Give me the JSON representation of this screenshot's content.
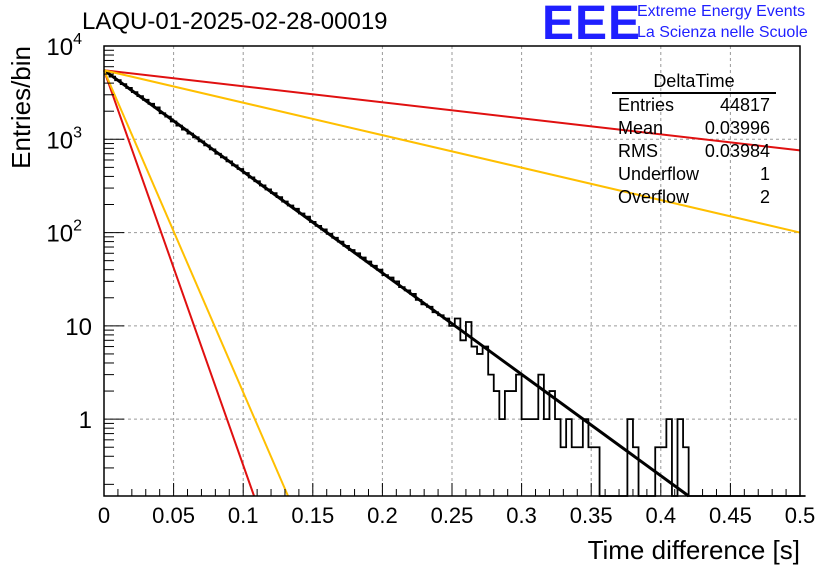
{
  "chart_title": "LAQU-01-2025-02-28-00019",
  "logo": {
    "mark": "EEE",
    "line1": "Extreme Energy Events",
    "line2": "La Scienza nelle Scuole",
    "color": "#1f1fff"
  },
  "stats_box": {
    "name": "DeltaTime",
    "rows": [
      {
        "key": "Entries",
        "value": "44817"
      },
      {
        "key": "Mean",
        "value": "0.03996"
      },
      {
        "key": "RMS",
        "value": "0.03984"
      },
      {
        "key": "Underflow",
        "value": "1"
      },
      {
        "key": "Overflow",
        "value": "2"
      }
    ]
  },
  "chart_data": {
    "type": "line",
    "xlabel": "Time difference [s]",
    "ylabel": "Entries/bin",
    "xlim": [
      0,
      0.5
    ],
    "ylim": [
      0.15,
      10000
    ],
    "yscale": "log",
    "grid": true,
    "x_ticks": [
      "0",
      "0.05",
      "0.1",
      "0.15",
      "0.2",
      "0.25",
      "0.3",
      "0.35",
      "0.4",
      "0.45",
      "0.5"
    ],
    "y_ticks": [
      {
        "value": 1,
        "base": "1",
        "exp": ""
      },
      {
        "value": 10,
        "base": "10",
        "exp": ""
      },
      {
        "value": 100,
        "base": "10",
        "exp": "2"
      },
      {
        "value": 1000,
        "base": "10",
        "exp": "3"
      },
      {
        "value": 10000,
        "base": "10",
        "exp": "4"
      }
    ],
    "histogram": {
      "name": "DeltaTime",
      "color": "#000000",
      "bin_width": 0.004,
      "values": [
        5200,
        4700,
        4300,
        3900,
        3550,
        3200,
        2900,
        2650,
        2400,
        2200,
        1900,
        1750,
        1550,
        1400,
        1270,
        1150,
        1050,
        950,
        860,
        780,
        700,
        640,
        580,
        525,
        480,
        435,
        390,
        355,
        320,
        290,
        265,
        240,
        215,
        195,
        180,
        160,
        148,
        130,
        118,
        108,
        97,
        88,
        80,
        72,
        65,
        60,
        54,
        49,
        44,
        40,
        35,
        33,
        30,
        26,
        24,
        22,
        19,
        17,
        16,
        14,
        13,
        12,
        10,
        12,
        7,
        11,
        6,
        5,
        6,
        3,
        2,
        1,
        2,
        2,
        3,
        1,
        1,
        1,
        3,
        1,
        2,
        1,
        0.5,
        1,
        0.5,
        0.5,
        1,
        0.5,
        0.5,
        0,
        0,
        0,
        0,
        0,
        1,
        0.5,
        0,
        0,
        0,
        0.5,
        0.5,
        1,
        0,
        1,
        0.5,
        0,
        0,
        0,
        0,
        0,
        0,
        0,
        0,
        0,
        0,
        0,
        0,
        0,
        0,
        0,
        0,
        0,
        0,
        0,
        0,
        0
      ]
    },
    "series": [
      {
        "x": [
          0,
          0.42
        ],
        "y": [
          5500,
          0.15
        ],
        "color": "#000000"
      },
      {
        "x": [
          0,
          0.5
        ],
        "y": [
          5500,
          760
        ],
        "color": "#e01010"
      },
      {
        "x": [
          0,
          0.1078
        ],
        "y": [
          5500,
          0.15
        ],
        "color": "#e01010"
      },
      {
        "x": [
          0,
          0.5
        ],
        "y": [
          5500,
          100
        ],
        "color": "#ffbf00"
      },
      {
        "x": [
          0,
          0.1322
        ],
        "y": [
          5500,
          0.15
        ],
        "color": "#ffbf00"
      }
    ]
  }
}
